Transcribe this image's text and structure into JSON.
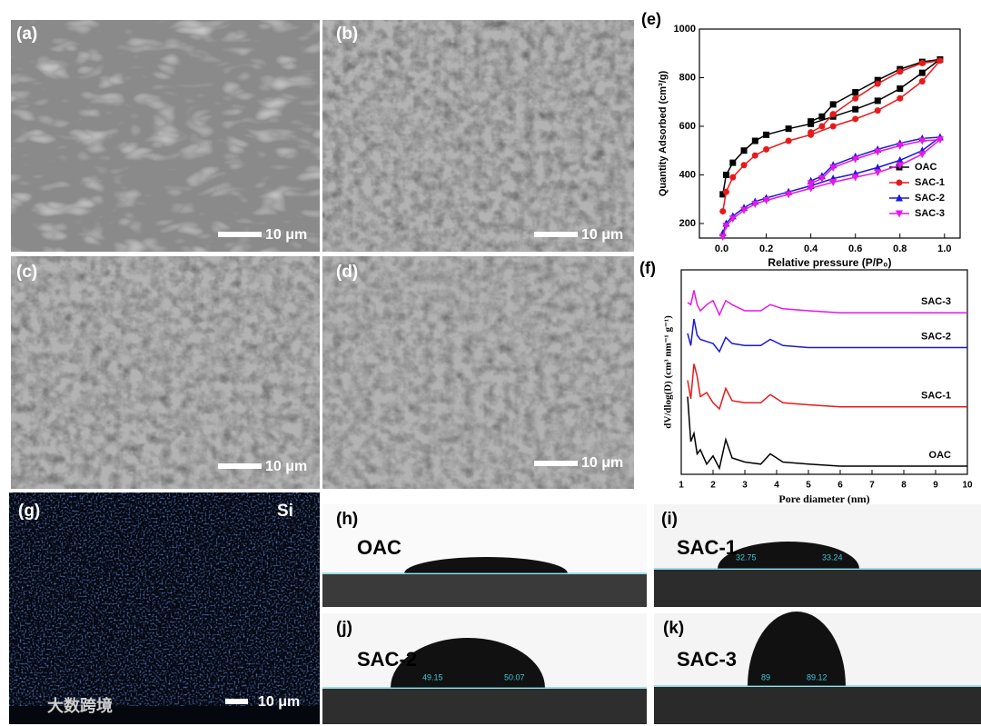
{
  "panels": [
    {
      "label": "(a)",
      "scale_bar": "10 μm"
    },
    {
      "label": "(b)",
      "scale_bar": "10 μm"
    },
    {
      "label": "(c)",
      "scale_bar": "10 μm"
    },
    {
      "label": "(d)",
      "scale_bar": "10 μm"
    },
    {
      "label": "(g)",
      "element": "Si",
      "scale_bar": "10 μm"
    },
    {
      "label": "(h)",
      "sample": "OAC"
    },
    {
      "label": "(i)",
      "sample": "SAC-1",
      "angles": [
        "32.75",
        "33.24"
      ]
    },
    {
      "label": "(j)",
      "sample": "SAC-2",
      "angles": [
        "49.15",
        "50.07"
      ]
    },
    {
      "label": "(k)",
      "sample": "SAC-3",
      "angles": [
        "89",
        "89.12"
      ]
    }
  ],
  "watermark": "大数跨境",
  "chart_data": [
    {
      "type": "line",
      "label": "(e)",
      "x_label": "Relative pressure (P/P₀)",
      "y_label": "Quantity Adsorbed (cm³/g)",
      "x": [
        0.005,
        0.02,
        0.05,
        0.1,
        0.15,
        0.2,
        0.3,
        0.4,
        0.5,
        0.6,
        0.7,
        0.8,
        0.9,
        0.98,
        0.9,
        0.8,
        0.7,
        0.6,
        0.5,
        0.45,
        0.4
      ],
      "xlim": [
        -0.1,
        1.07
      ],
      "ylim": [
        140,
        1000
      ],
      "xticks": [
        {
          "value": 0,
          "label": "0.0"
        },
        {
          "value": 0.2,
          "label": "0.2"
        },
        {
          "value": 0.4,
          "label": "0.4"
        },
        {
          "value": 0.6,
          "label": "0.6"
        },
        {
          "value": 0.8,
          "label": "0.8"
        },
        {
          "value": 1,
          "label": "1.0"
        }
      ],
      "yticks": [
        200,
        400,
        600,
        800,
        1000
      ],
      "legend": "lower right",
      "series": [
        {
          "name": "OAC",
          "color": "#000000",
          "marker": "square",
          "values": [
            320,
            400,
            450,
            500,
            540,
            565,
            590,
            610,
            640,
            670,
            705,
            755,
            820,
            875,
            865,
            835,
            790,
            740,
            690,
            640,
            620
          ]
        },
        {
          "name": "SAC-1",
          "color": "#e8191b",
          "marker": "circle",
          "values": [
            250,
            330,
            390,
            440,
            480,
            505,
            540,
            565,
            600,
            630,
            665,
            715,
            785,
            870,
            860,
            825,
            775,
            715,
            650,
            600,
            575
          ]
        },
        {
          "name": "SAC-2",
          "color": "#1a1ad6",
          "marker": "triangle",
          "values": [
            160,
            200,
            230,
            265,
            290,
            305,
            330,
            355,
            385,
            405,
            430,
            460,
            500,
            555,
            550,
            530,
            505,
            475,
            440,
            395,
            375
          ]
        },
        {
          "name": "SAC-3",
          "color": "#e815e8",
          "marker": "triangle-down",
          "values": [
            145,
            190,
            220,
            255,
            280,
            295,
            320,
            345,
            370,
            390,
            410,
            440,
            485,
            545,
            540,
            520,
            495,
            465,
            430,
            385,
            365
          ]
        }
      ]
    },
    {
      "type": "line",
      "label": "(f)",
      "x_label": "Pore diameter (nm)",
      "y_label": "dV/dlog(D) (cm³ nm⁻¹ g⁻¹)",
      "x": [
        1.2,
        1.3,
        1.4,
        1.5,
        1.6,
        1.8,
        2.0,
        2.2,
        2.4,
        2.6,
        3.0,
        3.5,
        3.8,
        4.2,
        5,
        6,
        7,
        8,
        9,
        10
      ],
      "xlim": [
        1,
        10
      ],
      "ylim": [
        0,
        10
      ],
      "xticks": [
        1,
        2,
        3,
        4,
        5,
        6,
        7,
        8,
        9,
        10
      ],
      "series": [
        {
          "name": "OAC",
          "color": "#000000",
          "values": [
            3.8,
            1.6,
            2.0,
            1.0,
            1.2,
            0.5,
            0.9,
            0.3,
            1.7,
            0.8,
            0.6,
            0.5,
            1.0,
            0.6,
            0.5,
            0.4,
            0.4,
            0.4,
            0.4,
            0.4
          ]
        },
        {
          "name": "SAC-1",
          "color": "#e8191b",
          "values": [
            4.6,
            3.7,
            5.4,
            4.8,
            3.8,
            4.0,
            3.5,
            3.2,
            4.2,
            3.6,
            3.5,
            3.5,
            3.9,
            3.5,
            3.4,
            3.3,
            3.3,
            3.3,
            3.3,
            3.3
          ]
        },
        {
          "name": "SAC-2",
          "color": "#1a1ad6",
          "values": [
            6.9,
            6.3,
            7.6,
            6.8,
            6.6,
            6.5,
            6.4,
            6.0,
            6.7,
            6.4,
            6.3,
            6.3,
            6.6,
            6.3,
            6.2,
            6.2,
            6.2,
            6.2,
            6.2,
            6.2
          ]
        },
        {
          "name": "SAC-3",
          "color": "#e815e8",
          "values": [
            8.4,
            8.3,
            9.0,
            8.3,
            8.0,
            8.3,
            8.5,
            7.8,
            8.5,
            8.3,
            8.0,
            8.0,
            8.3,
            8.1,
            8.0,
            7.9,
            7.9,
            7.9,
            7.9,
            7.9
          ]
        }
      ]
    }
  ]
}
